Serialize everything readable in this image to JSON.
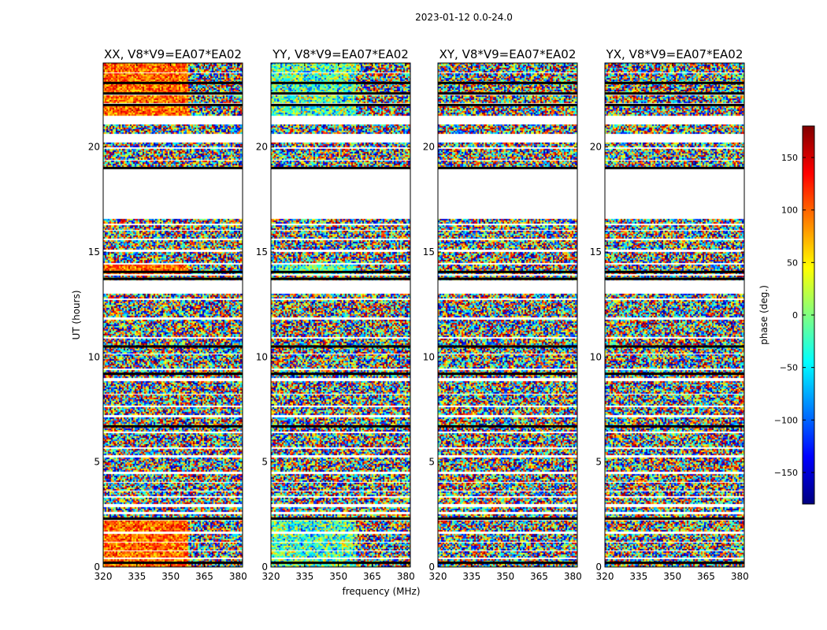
{
  "figure_title": "2023-01-12 0.0-24.0",
  "chart_data": {
    "type": "heatmap",
    "xlabel": "frequency (MHz)",
    "ylabel": "UT (hours)",
    "xlim": [
      320,
      382
    ],
    "ylim": [
      0,
      24
    ],
    "x_ticks": [
      320,
      335,
      350,
      365,
      380
    ],
    "y_ticks": [
      0,
      5,
      10,
      15,
      20
    ],
    "panels": [
      {
        "title": "XX, V8*V9=EA07*EA02",
        "polarization": "XX",
        "coherent": [
          0.4,
          0.7
        ],
        "cohLowBand": true
      },
      {
        "title": "YY, V8*V9=EA07*EA02",
        "polarization": "YY",
        "coherent": [
          -0.55,
          0.35
        ],
        "cohLowBand": true
      },
      {
        "title": "XY, V8*V9=EA07*EA02",
        "polarization": "XY",
        "coherent": null,
        "cohLowBand": false
      },
      {
        "title": "YX, V8*V9=EA07*EA02",
        "polarization": "YX",
        "coherent": null,
        "cohLowBand": false
      }
    ],
    "data_ranges_hours": [
      [
        0.05,
        0.35
      ],
      [
        0.45,
        0.75
      ],
      [
        0.85,
        1.15
      ],
      [
        1.25,
        1.55
      ],
      [
        1.7,
        2.2
      ],
      [
        2.35,
        2.5
      ],
      [
        2.65,
        2.85
      ],
      [
        3.0,
        3.3
      ],
      [
        3.4,
        3.6
      ],
      [
        3.7,
        4.0
      ],
      [
        4.1,
        4.4
      ],
      [
        4.6,
        5.2
      ],
      [
        5.35,
        5.6
      ],
      [
        5.75,
        6.35
      ],
      [
        6.5,
        6.65
      ],
      [
        6.75,
        7.1
      ],
      [
        7.25,
        7.6
      ],
      [
        7.75,
        8.2
      ],
      [
        8.3,
        8.85
      ],
      [
        9.0,
        9.35
      ],
      [
        9.5,
        9.65
      ],
      [
        9.7,
        10.1
      ],
      [
        10.2,
        10.45
      ],
      [
        10.55,
        10.85
      ],
      [
        11.0,
        11.75
      ],
      [
        11.9,
        12.7
      ],
      [
        12.85,
        13.0
      ],
      [
        13.65,
        13.85
      ],
      [
        14.0,
        14.4
      ],
      [
        14.5,
        15.0
      ],
      [
        15.15,
        15.55
      ],
      [
        15.7,
        16.0
      ],
      [
        16.1,
        16.25
      ],
      [
        16.35,
        16.55
      ],
      [
        19.05,
        19.35
      ],
      [
        19.45,
        19.9
      ],
      [
        20.0,
        20.2
      ],
      [
        20.65,
        21.05
      ],
      [
        21.55,
        22.0
      ],
      [
        22.15,
        22.45
      ],
      [
        22.6,
        23.0
      ],
      [
        23.1,
        23.5
      ],
      [
        23.6,
        24.0
      ]
    ],
    "dark_lines_hours": [
      0.2,
      2.3,
      6.7,
      9.2,
      10.5,
      13.72,
      14.05,
      19.0,
      22.0,
      22.55,
      23.05
    ],
    "colorbar": {
      "label": "phase (deg.)",
      "min": -180,
      "max": 180,
      "ticks": [
        150,
        100,
        50,
        0,
        -50,
        -100,
        -150
      ],
      "tick_labels": [
        "150",
        "100",
        "50",
        "0",
        "−50",
        "−100",
        "−150"
      ],
      "colormap": [
        "#000080",
        "#0000ff",
        "#0080ff",
        "#00ffff",
        "#80ff80",
        "#ffff00",
        "#ff8000",
        "#ff0000",
        "#800000"
      ]
    }
  }
}
